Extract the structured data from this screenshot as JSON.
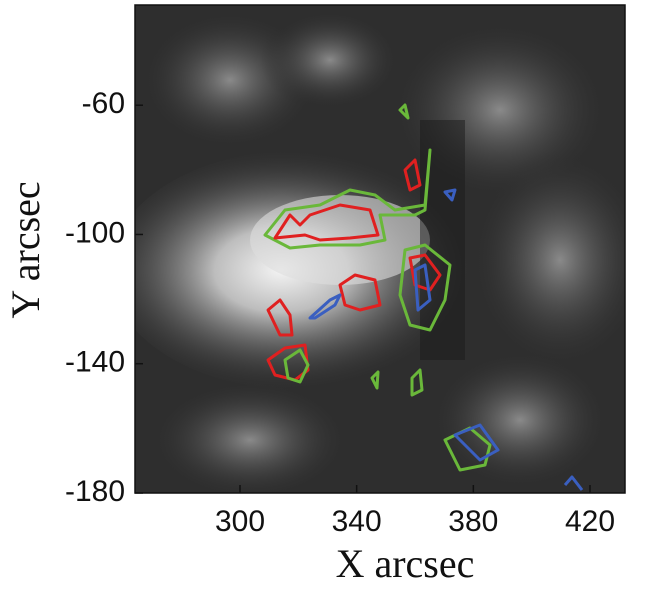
{
  "chart_data": {
    "type": "image",
    "xlabel": "X arcsec",
    "ylabel": "Y arcsec",
    "xlim": [
      264,
      432
    ],
    "xticks": [
      300,
      340,
      380,
      420
    ],
    "ylim": [
      -180,
      -29
    ],
    "yticks": [
      -60,
      -100,
      -140,
      -180
    ]
  }
}
